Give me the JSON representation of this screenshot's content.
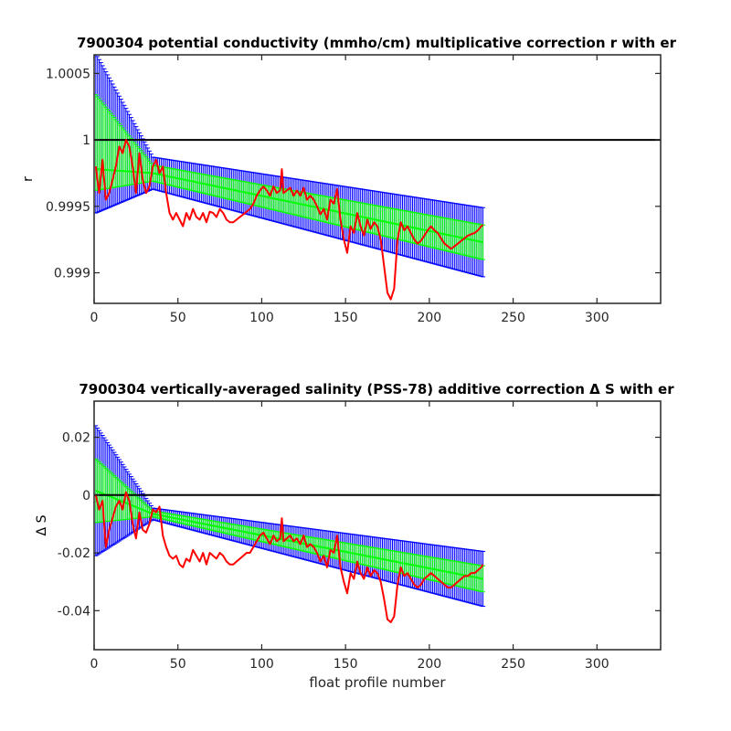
{
  "chart_data": [
    {
      "type": "line",
      "title": "7900304 potential conductivity (mmho/cm) multiplicative correction r with er",
      "xlabel": "",
      "ylabel": "r",
      "xlim": [
        0,
        338
      ],
      "ylim": [
        0.99877,
        1.00064
      ],
      "xticks": [
        0,
        50,
        100,
        150,
        200,
        250,
        300
      ],
      "yticks": [
        0.999,
        0.9995,
        1,
        1.0005
      ],
      "ytick_labels": [
        "0.999",
        "0.9995",
        "1",
        "1.0005"
      ],
      "grid": false,
      "reference_line": 1,
      "series": [
        {
          "name": "",
          "role": "fit-with-2x-error",
          "color": "#0000ff",
          "x": [
            1,
            35,
            232
          ],
          "y": [
            0.99978,
            0.99975,
            0.99923
          ],
          "err_upper": [
            1.00065,
            0.99987,
            0.99949
          ],
          "err_lower": [
            0.99945,
            0.99963,
            0.99897
          ]
        },
        {
          "name": "",
          "role": "fit-with-1x-error",
          "color": "#00ff00",
          "x": [
            1,
            35,
            232
          ],
          "y": [
            0.99978,
            0.99975,
            0.99923
          ],
          "err_upper": [
            1.00034,
            0.99981,
            0.99936
          ],
          "err_lower": [
            0.99962,
            0.99969,
            0.9991
          ]
        },
        {
          "name": "",
          "role": "profile-estimate",
          "color": "#ff0000",
          "x": [
            1,
            3,
            5,
            7,
            9,
            11,
            13,
            15,
            17,
            19,
            21,
            23,
            25,
            27,
            29,
            31,
            33,
            35,
            37,
            39,
            41,
            43,
            45,
            47,
            49,
            51,
            53,
            55,
            57,
            59,
            61,
            63,
            65,
            67,
            69,
            71,
            73,
            75,
            77,
            79,
            81,
            83,
            85,
            87,
            89,
            91,
            93,
            95,
            97,
            99,
            101,
            103,
            105,
            107,
            109,
            111,
            112,
            113,
            115,
            117,
            119,
            121,
            123,
            125,
            127,
            129,
            131,
            133,
            135,
            137,
            139,
            141,
            143,
            145,
            147,
            149,
            151,
            153,
            155,
            157,
            159,
            161,
            163,
            165,
            167,
            169,
            171,
            173,
            175,
            177,
            179,
            181,
            183,
            185,
            187,
            189,
            191,
            193,
            195,
            197,
            199,
            201,
            203,
            205,
            207,
            209,
            211,
            213,
            215,
            217,
            219,
            221,
            223,
            225,
            227,
            229,
            231,
            232
          ],
          "y": [
            0.9998,
            0.9996,
            0.99985,
            0.99955,
            0.9996,
            0.9997,
            0.9998,
            0.99995,
            0.9999,
            1.0,
            0.99995,
            0.9998,
            0.9996,
            0.9999,
            0.9997,
            0.9996,
            0.99965,
            0.9998,
            0.99985,
            0.99975,
            0.9998,
            0.9996,
            0.99945,
            0.9994,
            0.99945,
            0.9994,
            0.99935,
            0.99945,
            0.9994,
            0.99948,
            0.99942,
            0.9994,
            0.99945,
            0.99938,
            0.99946,
            0.99945,
            0.99942,
            0.99948,
            0.99945,
            0.9994,
            0.99938,
            0.99938,
            0.9994,
            0.99942,
            0.99944,
            0.99946,
            0.99948,
            0.99952,
            0.99958,
            0.99962,
            0.99965,
            0.99962,
            0.99958,
            0.99965,
            0.9996,
            0.99962,
            0.99978,
            0.9996,
            0.99962,
            0.99964,
            0.99958,
            0.99962,
            0.99958,
            0.99964,
            0.99955,
            0.99958,
            0.99955,
            0.9995,
            0.99944,
            0.99948,
            0.9994,
            0.99955,
            0.99952,
            0.99963,
            0.9994,
            0.99925,
            0.99915,
            0.99935,
            0.9993,
            0.99945,
            0.99935,
            0.99928,
            0.9994,
            0.99933,
            0.99938,
            0.99935,
            0.99925,
            0.99905,
            0.99885,
            0.9988,
            0.99888,
            0.99925,
            0.99938,
            0.99932,
            0.99935,
            0.9993,
            0.99925,
            0.99922,
            0.99924,
            0.99928,
            0.99932,
            0.99935,
            0.99932,
            0.9993,
            0.99926,
            0.99922,
            0.9992,
            0.99918,
            0.9992,
            0.99922,
            0.99924,
            0.99926,
            0.99928,
            0.99929,
            0.9993,
            0.99932,
            0.99935,
            0.99936
          ]
        }
      ]
    },
    {
      "type": "line",
      "title": "7900304 vertically-averaged salinity (PSS-78) additive correction Δ S with er",
      "xlabel": "float profile number",
      "ylabel": "Δ S",
      "xlim": [
        0,
        338
      ],
      "ylim": [
        -0.0535,
        0.0325
      ],
      "xticks": [
        0,
        50,
        100,
        150,
        200,
        250,
        300
      ],
      "yticks": [
        -0.04,
        -0.02,
        0,
        0.02
      ],
      "ytick_labels": [
        "-0.04",
        "-0.02",
        "0",
        "0.02"
      ],
      "grid": false,
      "reference_line": 0,
      "series": [
        {
          "name": "",
          "role": "fit-with-2x-error",
          "color": "#0000ff",
          "x": [
            1,
            35,
            232
          ],
          "y": [
            0.0015,
            -0.0065,
            -0.029
          ],
          "err_upper": [
            0.024,
            -0.0045,
            -0.0195
          ],
          "err_lower": [
            -0.021,
            -0.0085,
            -0.0385
          ]
        },
        {
          "name": "",
          "role": "fit-with-1x-error",
          "color": "#00ff00",
          "x": [
            1,
            35,
            232
          ],
          "y": [
            0.0015,
            -0.0065,
            -0.029
          ],
          "err_upper": [
            0.0125,
            -0.0055,
            -0.0245
          ],
          "err_lower": [
            -0.0095,
            -0.0075,
            -0.0335
          ]
        },
        {
          "name": "",
          "role": "profile-estimate",
          "color": "#ff0000",
          "x": [
            1,
            3,
            5,
            7,
            9,
            11,
            13,
            15,
            17,
            19,
            21,
            23,
            25,
            27,
            29,
            31,
            33,
            35,
            37,
            39,
            41,
            43,
            45,
            47,
            49,
            51,
            53,
            55,
            57,
            59,
            61,
            63,
            65,
            67,
            69,
            71,
            73,
            75,
            77,
            79,
            81,
            83,
            85,
            87,
            89,
            91,
            93,
            95,
            97,
            99,
            101,
            103,
            105,
            107,
            109,
            111,
            112,
            113,
            115,
            117,
            119,
            121,
            123,
            125,
            127,
            129,
            131,
            133,
            135,
            137,
            139,
            141,
            143,
            145,
            147,
            149,
            151,
            153,
            155,
            157,
            159,
            161,
            163,
            165,
            167,
            169,
            171,
            173,
            175,
            177,
            179,
            181,
            183,
            185,
            187,
            189,
            191,
            193,
            195,
            197,
            199,
            201,
            203,
            205,
            207,
            209,
            211,
            213,
            215,
            217,
            219,
            221,
            223,
            225,
            227,
            229,
            231,
            232
          ],
          "y": [
            0.0,
            -0.005,
            -0.002,
            -0.018,
            -0.012,
            -0.008,
            -0.004,
            -0.002,
            -0.005,
            0.001,
            -0.002,
            -0.01,
            -0.015,
            -0.006,
            -0.012,
            -0.013,
            -0.01,
            -0.005,
            -0.006,
            -0.004,
            -0.014,
            -0.018,
            -0.021,
            -0.022,
            -0.021,
            -0.024,
            -0.025,
            -0.022,
            -0.023,
            -0.019,
            -0.021,
            -0.023,
            -0.02,
            -0.024,
            -0.02,
            -0.021,
            -0.022,
            -0.02,
            -0.021,
            -0.023,
            -0.024,
            -0.024,
            -0.023,
            -0.022,
            -0.021,
            -0.02,
            -0.02,
            -0.018,
            -0.016,
            -0.014,
            -0.013,
            -0.015,
            -0.017,
            -0.014,
            -0.016,
            -0.015,
            -0.008,
            -0.016,
            -0.015,
            -0.014,
            -0.016,
            -0.015,
            -0.017,
            -0.014,
            -0.018,
            -0.017,
            -0.018,
            -0.02,
            -0.023,
            -0.021,
            -0.025,
            -0.019,
            -0.02,
            -0.014,
            -0.025,
            -0.03,
            -0.034,
            -0.027,
            -0.029,
            -0.023,
            -0.027,
            -0.029,
            -0.025,
            -0.028,
            -0.026,
            -0.027,
            -0.03,
            -0.036,
            -0.043,
            -0.044,
            -0.042,
            -0.031,
            -0.025,
            -0.028,
            -0.027,
            -0.029,
            -0.031,
            -0.032,
            -0.031,
            -0.029,
            -0.028,
            -0.027,
            -0.028,
            -0.029,
            -0.03,
            -0.031,
            -0.032,
            -0.032,
            -0.031,
            -0.03,
            -0.029,
            -0.028,
            -0.028,
            -0.027,
            -0.027,
            -0.026,
            -0.025,
            -0.024
          ]
        }
      ]
    }
  ]
}
